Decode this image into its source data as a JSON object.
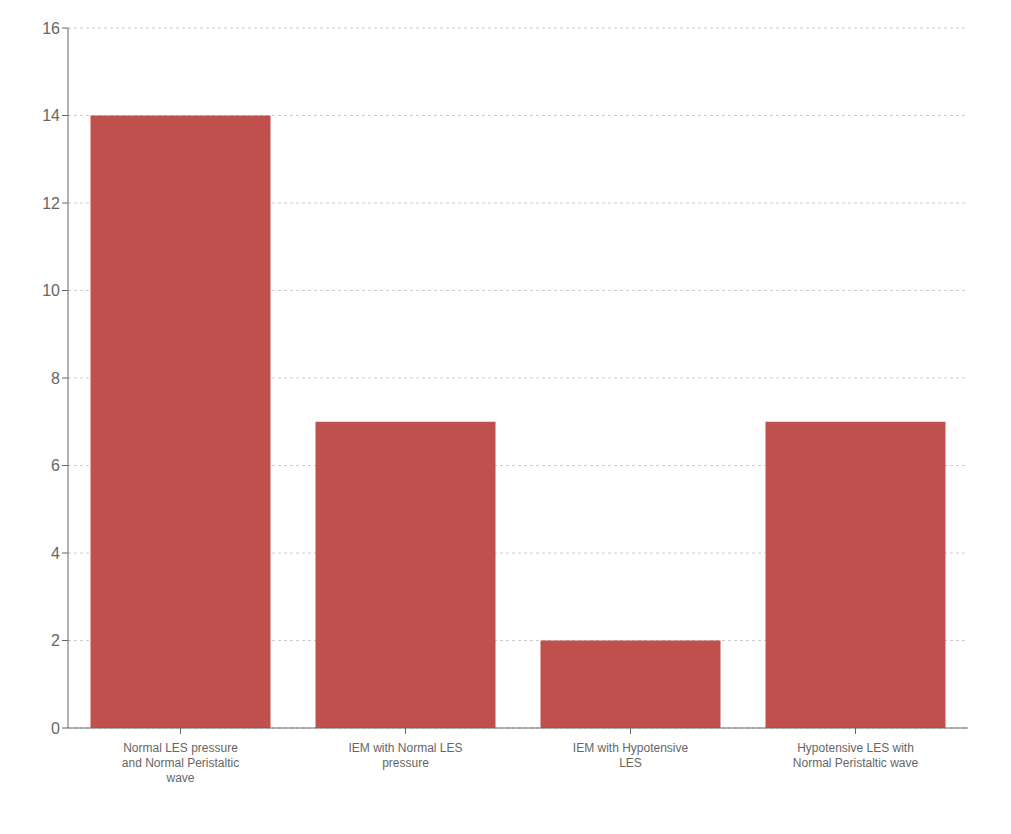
{
  "chart_data": {
    "type": "bar",
    "categories": [
      "Normal LES pressure\nand Normal Peristaltic\nwave",
      "IEM with Normal LES\npressure",
      "IEM with Hypotensive\nLES",
      "Hypotensive LES with\nNormal Peristaltic wave"
    ],
    "values": [
      14,
      7,
      2,
      7
    ],
    "color": "#c0504d",
    "ylim": [
      0,
      16
    ],
    "yticks": [
      0,
      2,
      4,
      6,
      8,
      10,
      12,
      14,
      16
    ],
    "grid": true
  }
}
